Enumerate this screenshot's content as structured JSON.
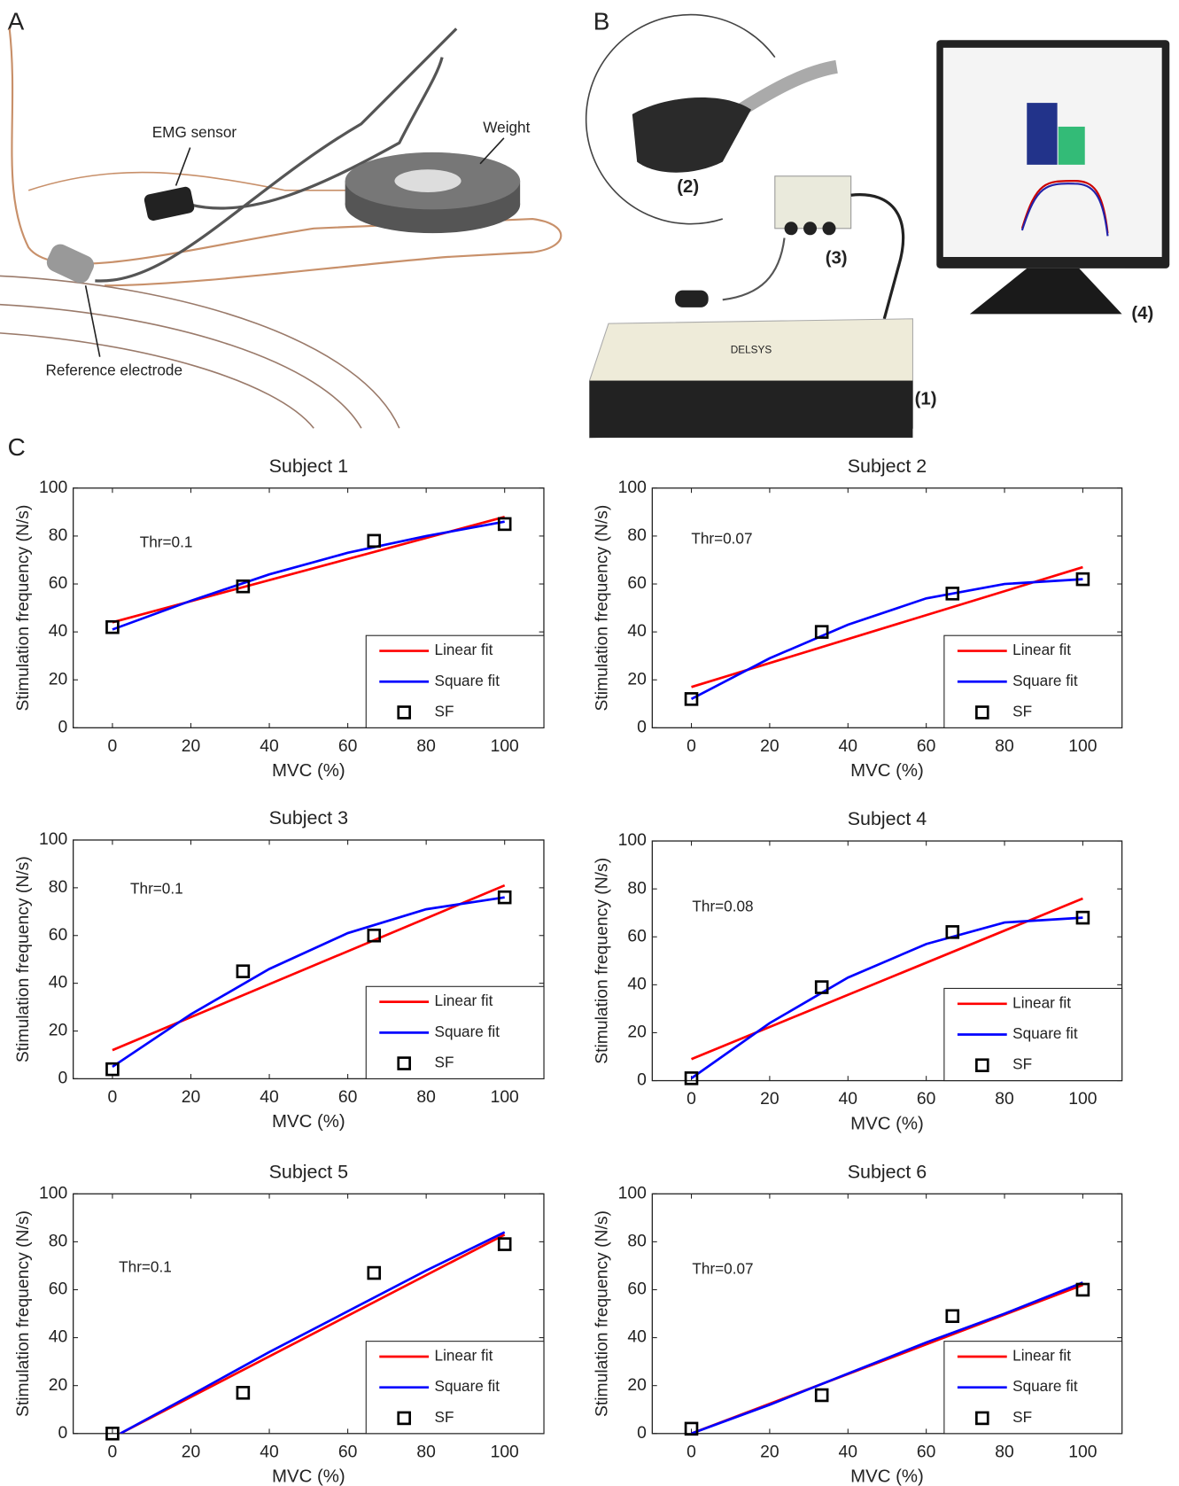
{
  "panel_labels": [
    "A",
    "B",
    "C"
  ],
  "panel_a": {
    "emg_sensor": "EMG sensor",
    "weight": "Weight",
    "reference_electrode": "Reference electrode"
  },
  "panel_b": {
    "item_1": "(1)",
    "item_2": "(2)",
    "item_3": "(3)",
    "item_4": "(4)",
    "brand": "DELSYS"
  },
  "chart_data": [
    {
      "type": "scatter",
      "title": "Subject 1",
      "annotation": "Thr=0.1",
      "x_label": "MVC (%)",
      "y_label": "Stimulation frequency (N/s)",
      "xlim": [
        -10,
        110
      ],
      "ylim": [
        0,
        100
      ],
      "xticks": [
        0,
        20,
        40,
        60,
        80,
        100
      ],
      "yticks": [
        0,
        20,
        40,
        60,
        80,
        100
      ],
      "legend": "lower right",
      "series": [
        {
          "name": "Linear fit",
          "color": "#ff0000",
          "x": [
            0,
            100
          ],
          "values": [
            44,
            88
          ]
        },
        {
          "name": "Square fit",
          "color": "#0000ff",
          "x": [
            0,
            20,
            40,
            60,
            80,
            100
          ],
          "values": [
            41,
            53,
            64,
            73,
            80,
            86
          ]
        },
        {
          "name": "SF",
          "color": "#000000",
          "marker": "square",
          "x": [
            0,
            33.3,
            66.7,
            100
          ],
          "values": [
            42,
            59,
            78,
            85
          ]
        }
      ]
    },
    {
      "type": "scatter",
      "title": "Subject 2",
      "annotation": "Thr=0.07",
      "x_label": "MVC (%)",
      "y_label": "Stimulation frequency (N/s)",
      "xlim": [
        -10,
        110
      ],
      "ylim": [
        0,
        100
      ],
      "xticks": [
        0,
        20,
        40,
        60,
        80,
        100
      ],
      "yticks": [
        0,
        20,
        40,
        60,
        80,
        100
      ],
      "legend": "lower right",
      "series": [
        {
          "name": "Linear fit",
          "color": "#ff0000",
          "x": [
            0,
            100
          ],
          "values": [
            17,
            67
          ]
        },
        {
          "name": "Square fit",
          "color": "#0000ff",
          "x": [
            0,
            20,
            40,
            60,
            80,
            100
          ],
          "values": [
            12,
            29,
            43,
            54,
            60,
            62
          ]
        },
        {
          "name": "SF",
          "color": "#000000",
          "marker": "square",
          "x": [
            0,
            33.3,
            66.7,
            100
          ],
          "values": [
            12,
            40,
            56,
            62
          ]
        }
      ]
    },
    {
      "type": "scatter",
      "title": "Subject 3",
      "annotation": "Thr=0.1",
      "x_label": "MVC (%)",
      "y_label": "Stimulation frequency (N/s)",
      "xlim": [
        -10,
        110
      ],
      "ylim": [
        0,
        100
      ],
      "xticks": [
        0,
        20,
        40,
        60,
        80,
        100
      ],
      "yticks": [
        0,
        20,
        40,
        60,
        80,
        100
      ],
      "legend": "lower right",
      "series": [
        {
          "name": "Linear fit",
          "color": "#ff0000",
          "x": [
            0,
            100
          ],
          "values": [
            12,
            81
          ]
        },
        {
          "name": "Square fit",
          "color": "#0000ff",
          "x": [
            0,
            20,
            40,
            60,
            80,
            100
          ],
          "values": [
            5,
            27,
            46,
            61,
            71,
            76
          ]
        },
        {
          "name": "SF",
          "color": "#000000",
          "marker": "square",
          "x": [
            0,
            33.3,
            66.7,
            100
          ],
          "values": [
            4,
            45,
            60,
            76
          ]
        }
      ]
    },
    {
      "type": "scatter",
      "title": "Subject 4",
      "annotation": "Thr=0.08",
      "x_label": "MVC (%)",
      "y_label": "Stimulation frequency (N/s)",
      "xlim": [
        -10,
        110
      ],
      "ylim": [
        0,
        100
      ],
      "xticks": [
        0,
        20,
        40,
        60,
        80,
        100
      ],
      "yticks": [
        0,
        20,
        40,
        60,
        80,
        100
      ],
      "legend": "lower right",
      "series": [
        {
          "name": "Linear fit",
          "color": "#ff0000",
          "x": [
            0,
            100
          ],
          "values": [
            9,
            76
          ]
        },
        {
          "name": "Square fit",
          "color": "#0000ff",
          "x": [
            0,
            20,
            40,
            60,
            80,
            100
          ],
          "values": [
            1,
            24,
            43,
            57,
            66,
            68
          ]
        },
        {
          "name": "SF",
          "color": "#000000",
          "marker": "square",
          "x": [
            0,
            33.3,
            66.7,
            100
          ],
          "values": [
            1,
            39,
            62,
            68
          ]
        }
      ]
    },
    {
      "type": "scatter",
      "title": "Subject 5",
      "annotation": "Thr=0.1",
      "x_label": "MVC (%)",
      "y_label": "Stimulation frequency (N/s)",
      "xlim": [
        -10,
        110
      ],
      "ylim": [
        0,
        100
      ],
      "xticks": [
        0,
        20,
        40,
        60,
        80,
        100
      ],
      "yticks": [
        0,
        20,
        40,
        60,
        80,
        100
      ],
      "legend": "lower right",
      "series": [
        {
          "name": "Linear fit",
          "color": "#ff0000",
          "x": [
            2,
            100
          ],
          "values": [
            0,
            83
          ]
        },
        {
          "name": "Square fit",
          "color": "#0000ff",
          "x": [
            2,
            20,
            40,
            60,
            80,
            100
          ],
          "values": [
            0,
            16,
            34,
            51,
            68,
            84
          ]
        },
        {
          "name": "SF",
          "color": "#000000",
          "marker": "square",
          "x": [
            0,
            33.3,
            66.7,
            100
          ],
          "values": [
            0,
            17,
            67,
            79
          ]
        }
      ]
    },
    {
      "type": "scatter",
      "title": "Subject 6",
      "annotation": "Thr=0.07",
      "x_label": "MVC (%)",
      "y_label": "Stimulation frequency (N/s)",
      "xlim": [
        -10,
        110
      ],
      "ylim": [
        0,
        100
      ],
      "xticks": [
        0,
        20,
        40,
        60,
        80,
        100
      ],
      "yticks": [
        0,
        20,
        40,
        60,
        80,
        100
      ],
      "legend": "lower right",
      "series": [
        {
          "name": "Linear fit",
          "color": "#ff0000",
          "x": [
            0,
            100
          ],
          "values": [
            0,
            62
          ]
        },
        {
          "name": "Square fit",
          "color": "#0000ff",
          "x": [
            0,
            20,
            40,
            60,
            80,
            100
          ],
          "values": [
            0,
            12,
            25,
            38,
            50,
            63
          ]
        },
        {
          "name": "SF",
          "color": "#000000",
          "marker": "square",
          "x": [
            0,
            33.3,
            66.7,
            100
          ],
          "values": [
            2,
            16,
            49,
            60
          ]
        }
      ]
    }
  ]
}
